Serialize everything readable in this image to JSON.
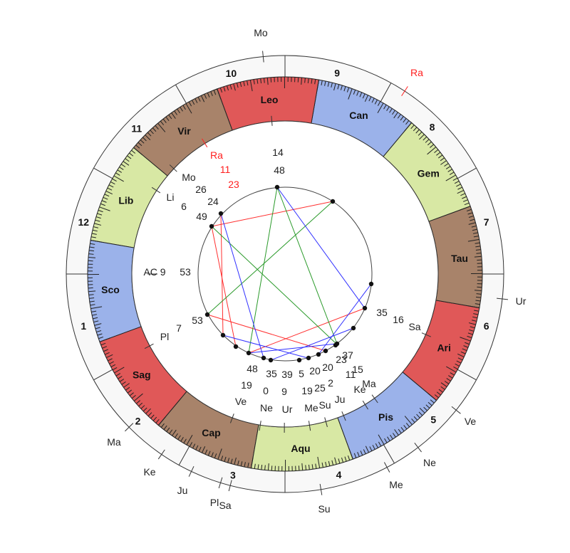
{
  "chart": {
    "ascendant": {
      "label": "AC 9",
      "minutes": "53",
      "longitude": 219.88
    },
    "signs": [
      {
        "name": "Ari",
        "color": "#e05858"
      },
      {
        "name": "Tau",
        "color": "#a8836a"
      },
      {
        "name": "Gem",
        "color": "#d8e8a4"
      },
      {
        "name": "Can",
        "color": "#9bb2ea"
      },
      {
        "name": "Leo",
        "color": "#e05858"
      },
      {
        "name": "Vir",
        "color": "#a8836a"
      },
      {
        "name": "Lib",
        "color": "#d8e8a4"
      },
      {
        "name": "Sco",
        "color": "#9bb2ea"
      },
      {
        "name": "Sag",
        "color": "#e05858"
      },
      {
        "name": "Cap",
        "color": "#a8836a"
      },
      {
        "name": "Aqu",
        "color": "#d8e8a4"
      },
      {
        "name": "Pis",
        "color": "#9bb2ea"
      }
    ],
    "houses": [
      {
        "number": "1"
      },
      {
        "number": "2"
      },
      {
        "number": "3"
      },
      {
        "number": "4"
      },
      {
        "number": "5"
      },
      {
        "number": "6"
      },
      {
        "number": "7"
      },
      {
        "number": "8"
      },
      {
        "number": "9"
      },
      {
        "number": "10"
      },
      {
        "number": "11"
      },
      {
        "number": "12"
      }
    ],
    "natal_planets": [
      {
        "name": "Ra",
        "deg": "11",
        "min": "23",
        "sign": "Vir",
        "color": "#ff2020"
      },
      {
        "name": "Mo",
        "deg": "26",
        "min": "24",
        "sign": "Vir"
      },
      {
        "name": "Li",
        "deg": "6",
        "min": "49",
        "sign": "Lib"
      },
      {
        "name": "",
        "deg": "14",
        "min": "48",
        "sign": "Leo"
      },
      {
        "name": "Pl",
        "deg": "7",
        "min": "53",
        "sign": "Sag"
      },
      {
        "name": "Ve",
        "deg": "19",
        "min": "48",
        "sign": "Cap"
      },
      {
        "name": "Ne",
        "deg": "0",
        "min": "35",
        "sign": "Aqu"
      },
      {
        "name": "Ur",
        "deg": "9",
        "min": "39",
        "sign": "Aqu"
      },
      {
        "name": "Me",
        "deg": "19",
        "min": "5",
        "sign": "Aqu"
      },
      {
        "name": "Su",
        "deg": "25",
        "min": "20",
        "sign": "Aqu"
      },
      {
        "name": "Ju",
        "deg": "2",
        "min": "20",
        "sign": "Pis"
      },
      {
        "name": "Ke",
        "deg": "11",
        "min": "23",
        "sign": "Pis"
      },
      {
        "name": "Ma",
        "deg": "15",
        "min": "37",
        "sign": "Pis"
      },
      {
        "name": "Sa",
        "deg": "16",
        "min": "35",
        "sign": "Ari"
      }
    ],
    "transit_planets": [
      {
        "name": "Mo"
      },
      {
        "name": "Ra",
        "color": "#ff2020"
      },
      {
        "name": "Ur"
      },
      {
        "name": "Ve"
      },
      {
        "name": "Ne"
      },
      {
        "name": "Me"
      },
      {
        "name": "Su"
      },
      {
        "name": "Sa"
      },
      {
        "name": "Pl"
      },
      {
        "name": "Ju"
      },
      {
        "name": "Ke"
      },
      {
        "name": "Ma"
      }
    ],
    "aspect_colors": {
      "red": "#ff3030",
      "green": "#2a9a2a",
      "blue": "#3030ff"
    }
  }
}
